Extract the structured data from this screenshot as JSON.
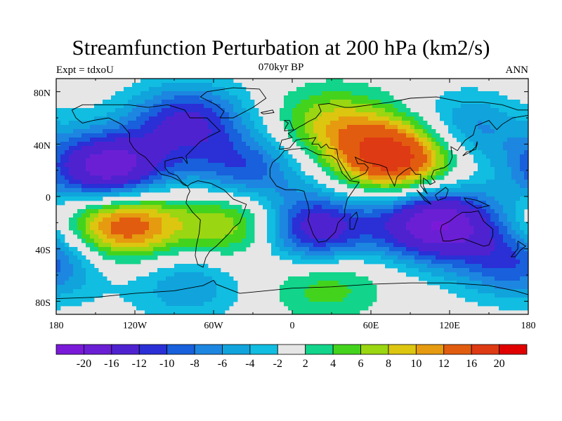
{
  "header": {
    "title": "Streamfunction Perturbation at 200 hPa (km2/s)",
    "left": "Expt = tdxoU",
    "center": "070kyr BP",
    "right": "ANN"
  },
  "axes": {
    "lat_ticks": [
      "80N",
      "40N",
      "0",
      "40S",
      "80S"
    ],
    "lon_ticks": [
      "180",
      "120W",
      "60W",
      "0",
      "60E",
      "120E",
      "180"
    ]
  },
  "colorbar": {
    "labels": [
      "-20",
      "-16",
      "-12",
      "-10",
      "-8",
      "-6",
      "-4",
      "-2",
      "2",
      "4",
      "6",
      "8",
      "10",
      "12",
      "16",
      "20"
    ],
    "colors": [
      "#7a1ad8",
      "#6b1fd4",
      "#4f22d0",
      "#2a2fd6",
      "#1860dc",
      "#1d86e0",
      "#10a3dc",
      "#11bde0",
      "#e6e6e6",
      "#12d48a",
      "#44d31d",
      "#9ad611",
      "#dcc60f",
      "#e59a10",
      "#e25c0f",
      "#de3a14",
      "#e00000"
    ]
  },
  "chart_data": {
    "type": "heatmap",
    "title": "Streamfunction Perturbation at 200 hPa (km2/s)",
    "projection": "cylindrical equidistant",
    "lon_range": [
      -180,
      180
    ],
    "lat_range": [
      -90,
      90
    ],
    "contour_levels": [
      -20,
      -16,
      -12,
      -10,
      -8,
      -6,
      -4,
      -2,
      2,
      4,
      6,
      8,
      10,
      12,
      16,
      20
    ],
    "features": [
      {
        "center": [
          -140,
          20
        ],
        "peak": -20
      },
      {
        "center": [
          -80,
          58
        ],
        "peak": -12
      },
      {
        "center": [
          -35,
          20
        ],
        "peak": -10
      },
      {
        "center": [
          -130,
          -20
        ],
        "peak": 16
      },
      {
        "center": [
          -40,
          -20
        ],
        "peak": 10
      },
      {
        "center": [
          15,
          -25
        ],
        "peak": -16
      },
      {
        "center": [
          110,
          -20
        ],
        "peak": -20
      },
      {
        "center": [
          80,
          30
        ],
        "peak": 20
      },
      {
        "center": [
          30,
          55
        ],
        "peak": 8
      },
      {
        "center": [
          130,
          50
        ],
        "peak": -8
      },
      {
        "center": [
          25,
          -65
        ],
        "peak": 6
      },
      {
        "center": [
          -80,
          -67
        ],
        "peak": -6
      },
      {
        "center": [
          170,
          -50
        ],
        "peak": -10
      }
    ]
  }
}
